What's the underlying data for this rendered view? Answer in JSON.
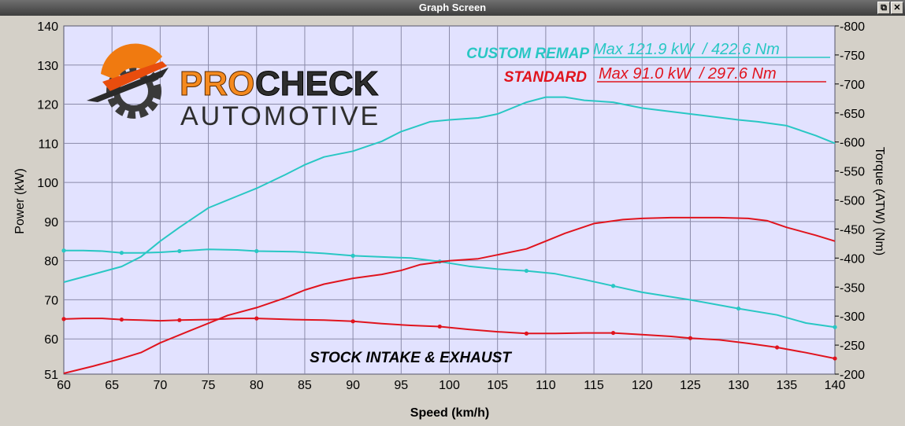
{
  "window": {
    "title": "Graph Screen",
    "restore_glyph": "⧉",
    "close_glyph": "✕"
  },
  "logo": {
    "brand_top_a": "PRO",
    "brand_top_b": "CHECK",
    "brand_bottom": "AUTOMOTIVE"
  },
  "legend": {
    "custom_label": "CUSTOM REMAP",
    "custom_max": "Max 121.9 kW  / 422.6 Nm",
    "standard_label": "STANDARD",
    "standard_max": "Max 91.0 kW  / 297.6 Nm"
  },
  "annotation": "STOCK INTAKE & EXHAUST",
  "colors": {
    "custom": "#29c7c4",
    "standard": "#e0141e",
    "plot_bg": "#e2e2ff",
    "grid": "#8a8aa8"
  },
  "chart_data": {
    "type": "line",
    "title": "",
    "xlabel": "Speed (km/h)",
    "ylabel": "Power (kW)",
    "y2label": "Torque (ATW) (Nm)",
    "xlim": [
      60,
      140
    ],
    "ylim": [
      51,
      140
    ],
    "y2lim": [
      200,
      800
    ],
    "x_ticks": [
      60,
      65,
      70,
      75,
      80,
      85,
      90,
      95,
      100,
      105,
      110,
      115,
      120,
      125,
      130,
      135,
      140
    ],
    "y_ticks": [
      51,
      60,
      70,
      80,
      90,
      100,
      110,
      120,
      130,
      140
    ],
    "y2_ticks": [
      200,
      250,
      300,
      350,
      400,
      450,
      500,
      550,
      600,
      650,
      700,
      750,
      800
    ],
    "grid": true,
    "series": [
      {
        "name": "CUSTOM REMAP",
        "metric": "power",
        "axis": "left",
        "color": "#29c7c4",
        "x": [
          60,
          63,
          66,
          68,
          70,
          72,
          75,
          78,
          80,
          83,
          85,
          87,
          90,
          93,
          95,
          98,
          100,
          103,
          105,
          108,
          110,
          112,
          114,
          117,
          120,
          125,
          130,
          132,
          135,
          138,
          140
        ],
        "y": [
          74.5,
          76.5,
          78.5,
          81,
          85,
          88.5,
          93.5,
          96.5,
          98.5,
          102,
          104.5,
          106.5,
          108,
          110.5,
          113,
          115.5,
          116,
          116.5,
          117.5,
          120.5,
          121.8,
          121.8,
          121,
          120.5,
          119,
          117.5,
          116,
          115.5,
          114.5,
          112,
          110
        ]
      },
      {
        "name": "CUSTOM REMAP",
        "metric": "torque",
        "axis": "right",
        "color": "#29c7c4",
        "x": [
          60,
          62,
          64,
          66,
          68,
          70,
          72,
          75,
          78,
          80,
          84,
          87,
          90,
          93,
          96,
          99,
          102,
          105,
          108,
          111,
          114,
          117,
          120,
          125,
          130,
          134,
          137,
          140
        ],
        "y": [
          413,
          413,
          412,
          409,
          409,
          410,
          412,
          415,
          414,
          412,
          411,
          408,
          404,
          402,
          400,
          394,
          386,
          381,
          378,
          373,
          363,
          352,
          341,
          328,
          313,
          302,
          288,
          281
        ]
      },
      {
        "name": "STANDARD",
        "metric": "power",
        "axis": "left",
        "color": "#e0141e",
        "x": [
          60,
          63,
          66,
          68,
          70,
          73,
          75,
          77,
          80,
          83,
          85,
          87,
          90,
          93,
          95,
          97,
          100,
          103,
          105,
          108,
          110,
          112,
          115,
          118,
          120,
          123,
          125,
          128,
          131,
          133,
          135,
          138,
          140
        ],
        "y": [
          51.2,
          53,
          55,
          56.5,
          59,
          62,
          64,
          66,
          68,
          70.5,
          72.5,
          74,
          75.5,
          76.5,
          77.5,
          79,
          80,
          80.5,
          81.5,
          83,
          85,
          87,
          89.5,
          90.5,
          90.8,
          91,
          91,
          91,
          90.8,
          90.2,
          88.5,
          86.5,
          85
        ]
      },
      {
        "name": "STANDARD",
        "metric": "torque",
        "axis": "right",
        "color": "#e0141e",
        "x": [
          60,
          62,
          64,
          66,
          68,
          70,
          72,
          75,
          78,
          80,
          84,
          87,
          90,
          93,
          96,
          99,
          102,
          105,
          108,
          111,
          114,
          117,
          120,
          123,
          125,
          128,
          131,
          134,
          137,
          140
        ],
        "y": [
          295,
          296,
          296,
          294,
          293,
          292,
          293,
          294,
          296,
          296,
          294,
          293,
          291,
          287,
          284,
          282,
          277,
          273,
          270,
          270,
          271,
          271,
          268,
          265,
          262,
          259,
          253,
          246,
          237,
          227
        ]
      }
    ]
  }
}
